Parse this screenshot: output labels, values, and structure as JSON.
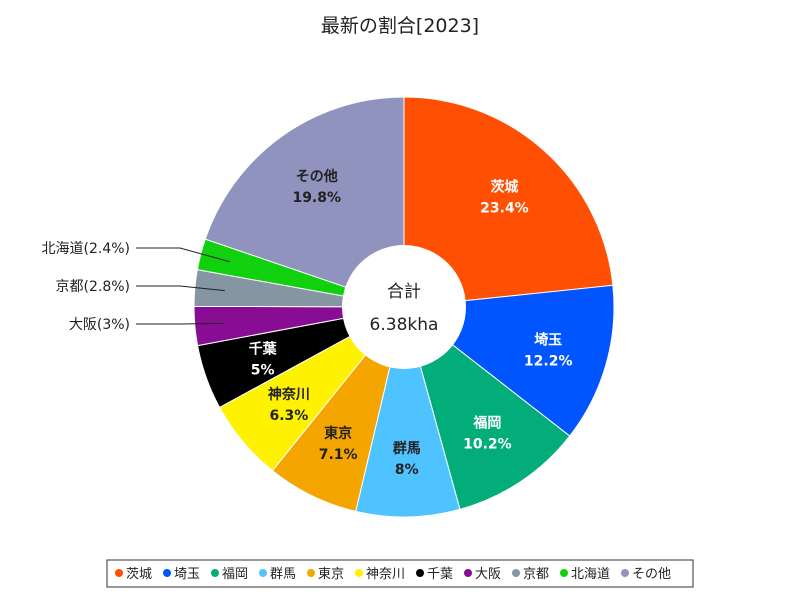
{
  "chart_data": {
    "type": "pie",
    "variant": "donut",
    "title": "最新の割合[2023]",
    "center_label": "合計",
    "center_value": "6.38kha",
    "categories": [
      "茨城",
      "埼玉",
      "福岡",
      "群馬",
      "東京",
      "神奈川",
      "千葉",
      "大阪",
      "京都",
      "北海道",
      "その他"
    ],
    "values": [
      23.4,
      12.2,
      10.2,
      8,
      7.1,
      6.3,
      5,
      3,
      2.8,
      2.4,
      19.8
    ],
    "value_labels": [
      "23.4%",
      "12.2%",
      "10.2%",
      "8%",
      "7.1%",
      "6.3%",
      "5%",
      "3%",
      "2.8%",
      "2.4%",
      "19.8%"
    ],
    "external_labels": [
      "",
      "",
      "",
      "",
      "",
      "",
      "",
      "大阪(3%)",
      "京都(2.8%)",
      "北海道(2.4%)",
      ""
    ],
    "colors": [
      "#ff4f02",
      "#0055ff",
      "#03ad7a",
      "#4fc3ff",
      "#f4a500",
      "#fff200",
      "#000000",
      "#880c94",
      "#8595a1",
      "#11d10f",
      "#9093bd"
    ],
    "label_colors": [
      "#ffffff",
      "#ffffff",
      "#ffffff",
      "#222222",
      "#222222",
      "#222222",
      "#ffffff",
      "#ffffff",
      "#ffffff",
      "#ffffff",
      "#222222"
    ],
    "legend_position": "bottom"
  }
}
